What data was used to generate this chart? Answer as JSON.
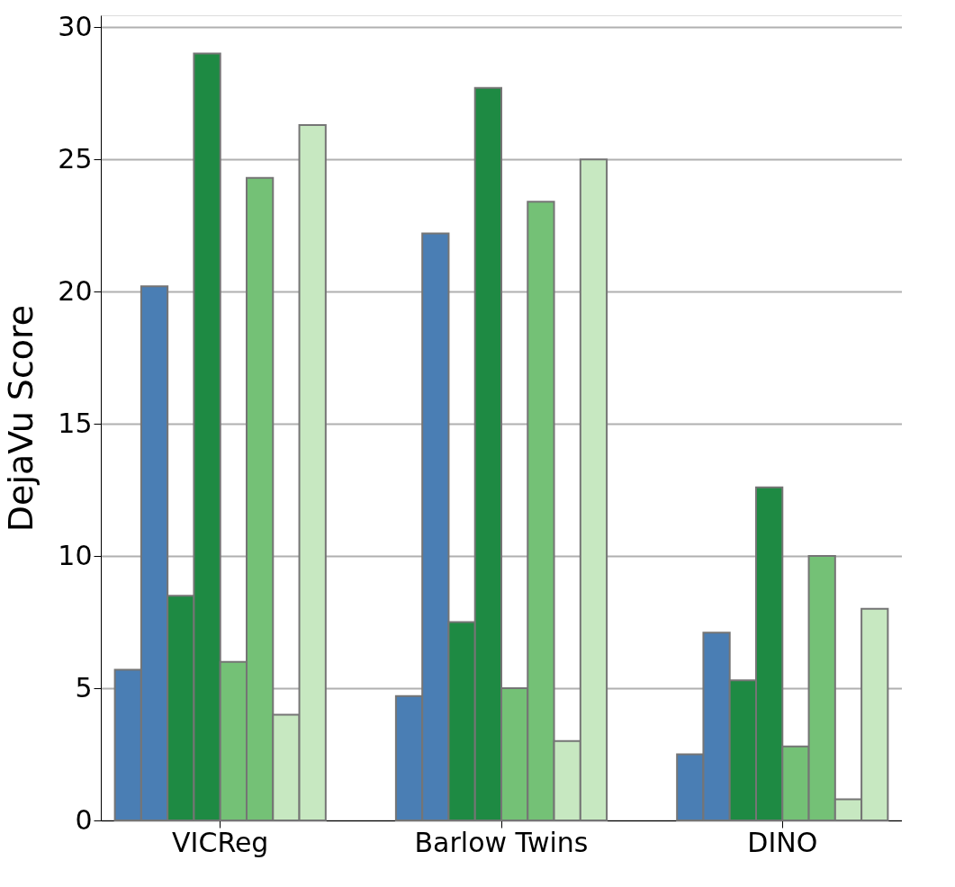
{
  "chart_data": {
    "type": "bar",
    "ylabel": "DejaVu Score",
    "categories": [
      "VICReg",
      "Barlow Twins",
      "DINO"
    ],
    "series": [
      {
        "color": "#4a7eb4",
        "values": [
          5.7,
          4.7,
          2.5
        ]
      },
      {
        "color": "#4a7eb4",
        "values": [
          20.2,
          22.2,
          7.1
        ]
      },
      {
        "color": "#1e8a43",
        "values": [
          8.5,
          7.5,
          5.3
        ]
      },
      {
        "color": "#1e8a43",
        "values": [
          29.0,
          27.7,
          12.6
        ]
      },
      {
        "color": "#74c176",
        "values": [
          6.0,
          5.0,
          2.8
        ]
      },
      {
        "color": "#74c176",
        "values": [
          24.3,
          23.4,
          10.0
        ]
      },
      {
        "color": "#c7e8c1",
        "values": [
          4.0,
          3.0,
          0.8
        ]
      },
      {
        "color": "#c7e8c1",
        "values": [
          26.3,
          25.0,
          8.0
        ]
      }
    ],
    "ylim": [
      0,
      30.45
    ],
    "yticks": [
      0,
      5,
      10,
      15,
      20,
      25,
      30
    ],
    "grid": "y",
    "legend": false
  }
}
